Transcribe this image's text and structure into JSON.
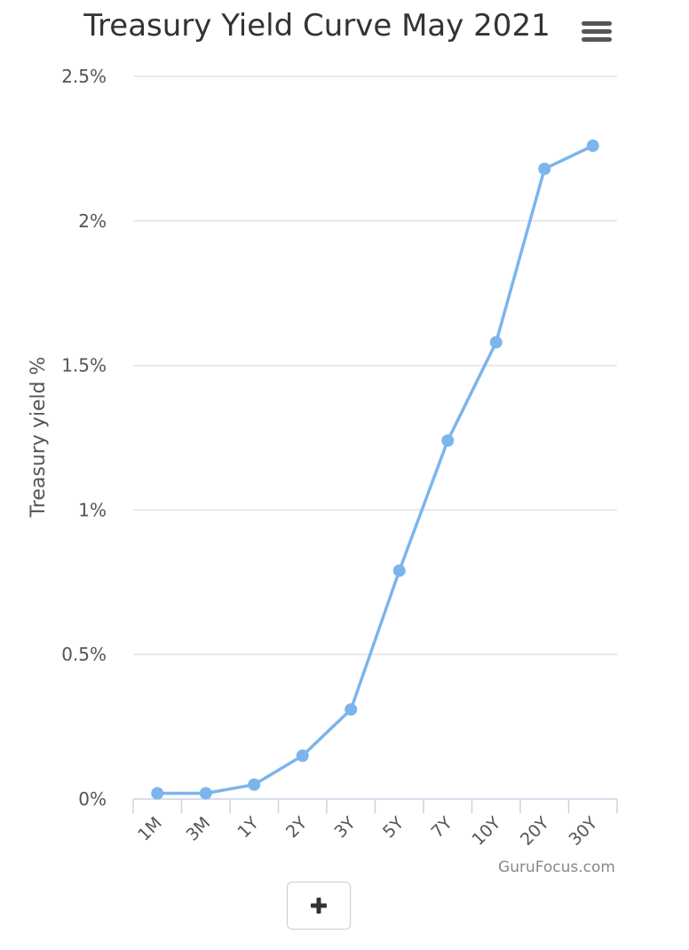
{
  "chart_data": {
    "type": "line",
    "title": "Treasury Yield Curve May 2021",
    "ylabel": "Treasury yield %",
    "xlabel": "",
    "categories": [
      "1M",
      "3M",
      "1Y",
      "2Y",
      "3Y",
      "5Y",
      "7Y",
      "10Y",
      "20Y",
      "30Y"
    ],
    "series": [
      {
        "values": [
          0.02,
          0.02,
          0.05,
          0.15,
          0.31,
          0.79,
          1.24,
          1.58,
          2.18,
          2.26
        ],
        "color": "#7cb5ec"
      }
    ],
    "ylim": [
      0,
      2.5
    ],
    "yticks": [
      {
        "value": 0,
        "label": "0%"
      },
      {
        "value": 0.5,
        "label": "0.5%"
      },
      {
        "value": 1,
        "label": "1%"
      },
      {
        "value": 1.5,
        "label": "1.5%"
      },
      {
        "value": 2,
        "label": "2%"
      },
      {
        "value": 2.5,
        "label": "2.5%"
      }
    ],
    "grid": true,
    "legend": "none",
    "credit": "GuruFocus.com"
  },
  "controls": {
    "menu_icon": "hamburger-menu-icon",
    "zoom_icon": "plus-icon"
  }
}
